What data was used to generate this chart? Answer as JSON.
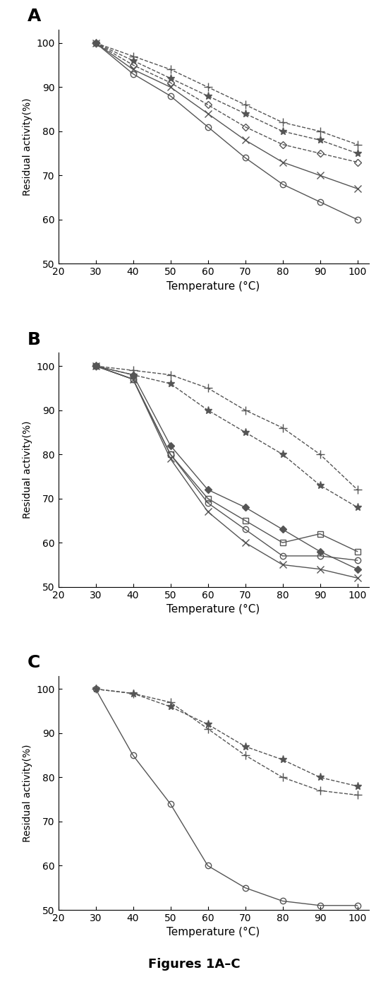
{
  "panel_A": {
    "label": "A",
    "xlabel": "Temperature (°C)",
    "ylabel": "Residual activity(%)",
    "xlim": [
      20,
      103
    ],
    "ylim": [
      50,
      103
    ],
    "xticks": [
      20,
      30,
      40,
      50,
      60,
      70,
      80,
      90,
      100
    ],
    "yticks": [
      50,
      60,
      70,
      80,
      90,
      100
    ],
    "series": [
      {
        "x": [
          30,
          40,
          50,
          60,
          70,
          80,
          90,
          100
        ],
        "y": [
          100,
          97,
          94,
          90,
          86,
          82,
          80,
          77
        ],
        "marker": "+",
        "linestyle": "--",
        "color": "#555555",
        "markersize": 9,
        "linewidth": 1.0,
        "markerfacecolor": "none"
      },
      {
        "x": [
          30,
          40,
          50,
          60,
          70,
          80,
          90,
          100
        ],
        "y": [
          100,
          96,
          92,
          88,
          84,
          80,
          78,
          75
        ],
        "marker": "*",
        "linestyle": "--",
        "color": "#555555",
        "markersize": 8,
        "linewidth": 1.0,
        "markerfacecolor": "#555555"
      },
      {
        "x": [
          30,
          40,
          50,
          60,
          70,
          80,
          90,
          100
        ],
        "y": [
          100,
          95,
          91,
          86,
          81,
          77,
          75,
          73
        ],
        "marker": "D",
        "linestyle": "--",
        "color": "#555555",
        "markersize": 5,
        "linewidth": 1.0,
        "markerfacecolor": "none"
      },
      {
        "x": [
          30,
          40,
          50,
          60,
          70,
          80,
          90,
          100
        ],
        "y": [
          100,
          94,
          90,
          84,
          78,
          73,
          70,
          67
        ],
        "marker": "x",
        "linestyle": "-",
        "color": "#555555",
        "markersize": 7,
        "linewidth": 1.0,
        "markerfacecolor": "none"
      },
      {
        "x": [
          30,
          40,
          50,
          60,
          70,
          80,
          90,
          100
        ],
        "y": [
          100,
          93,
          88,
          81,
          74,
          68,
          64,
          60
        ],
        "marker": "o",
        "linestyle": "-",
        "color": "#555555",
        "markersize": 6,
        "linewidth": 1.0,
        "markerfacecolor": "none"
      }
    ]
  },
  "panel_B": {
    "label": "B",
    "xlabel": "Temperature (°C)",
    "ylabel": "Residual activity(%)",
    "xlim": [
      20,
      103
    ],
    "ylim": [
      50,
      103
    ],
    "xticks": [
      20,
      30,
      40,
      50,
      60,
      70,
      80,
      90,
      100
    ],
    "yticks": [
      50,
      60,
      70,
      80,
      90,
      100
    ],
    "series": [
      {
        "x": [
          30,
          40,
          50,
          60,
          70,
          80,
          90,
          100
        ],
        "y": [
          100,
          99,
          98,
          95,
          90,
          86,
          80,
          72
        ],
        "marker": "+",
        "linestyle": "--",
        "color": "#555555",
        "markersize": 9,
        "linewidth": 1.0,
        "markerfacecolor": "none"
      },
      {
        "x": [
          30,
          40,
          50,
          60,
          70,
          80,
          90,
          100
        ],
        "y": [
          100,
          98,
          96,
          90,
          85,
          80,
          73,
          68
        ],
        "marker": "*",
        "linestyle": "--",
        "color": "#555555",
        "markersize": 8,
        "linewidth": 1.0,
        "markerfacecolor": "#555555"
      },
      {
        "x": [
          30,
          40,
          50,
          60,
          70,
          80,
          90,
          100
        ],
        "y": [
          100,
          98,
          82,
          72,
          68,
          63,
          58,
          54
        ],
        "marker": "D",
        "linestyle": "-",
        "color": "#555555",
        "markersize": 5,
        "linewidth": 1.0,
        "markerfacecolor": "#555555"
      },
      {
        "x": [
          30,
          40,
          50,
          60,
          70,
          80,
          90,
          100
        ],
        "y": [
          100,
          97,
          80,
          70,
          65,
          60,
          62,
          58
        ],
        "marker": "s",
        "linestyle": "-",
        "color": "#555555",
        "markersize": 6,
        "linewidth": 1.0,
        "markerfacecolor": "none"
      },
      {
        "x": [
          30,
          40,
          50,
          60,
          70,
          80,
          90,
          100
        ],
        "y": [
          100,
          97,
          80,
          69,
          63,
          57,
          57,
          56
        ],
        "marker": "o",
        "linestyle": "-",
        "color": "#555555",
        "markersize": 6,
        "linewidth": 1.0,
        "markerfacecolor": "none"
      },
      {
        "x": [
          30,
          40,
          50,
          60,
          70,
          80,
          90,
          100
        ],
        "y": [
          100,
          97,
          79,
          67,
          60,
          55,
          54,
          52
        ],
        "marker": "x",
        "linestyle": "-",
        "color": "#555555",
        "markersize": 7,
        "linewidth": 1.0,
        "markerfacecolor": "none"
      }
    ]
  },
  "panel_C": {
    "label": "C",
    "xlabel": "Temperature (°C)",
    "ylabel": "Residual activity(%)",
    "xlim": [
      20,
      103
    ],
    "ylim": [
      50,
      103
    ],
    "xticks": [
      20,
      30,
      40,
      50,
      60,
      70,
      80,
      90,
      100
    ],
    "yticks": [
      50,
      60,
      70,
      80,
      90,
      100
    ],
    "series": [
      {
        "x": [
          30,
          40,
          50,
          60,
          70,
          80,
          90,
          100
        ],
        "y": [
          100,
          99,
          97,
          91,
          85,
          80,
          77,
          76
        ],
        "marker": "+",
        "linestyle": "--",
        "color": "#555555",
        "markersize": 9,
        "linewidth": 1.0,
        "markerfacecolor": "none"
      },
      {
        "x": [
          30,
          40,
          50,
          60,
          70,
          80,
          90,
          100
        ],
        "y": [
          100,
          99,
          96,
          92,
          87,
          84,
          80,
          78
        ],
        "marker": "*",
        "linestyle": "--",
        "color": "#555555",
        "markersize": 8,
        "linewidth": 1.0,
        "markerfacecolor": "#555555"
      },
      {
        "x": [
          30,
          40,
          50,
          60,
          70,
          80,
          90,
          100
        ],
        "y": [
          100,
          85,
          74,
          60,
          55,
          52,
          51,
          51
        ],
        "marker": "o",
        "linestyle": "-",
        "color": "#555555",
        "markersize": 6,
        "linewidth": 1.0,
        "markerfacecolor": "none"
      }
    ]
  },
  "figure_caption": "Figures 1A–C",
  "background_color": "#ffffff",
  "fig_width": 5.5,
  "fig_height": 14.0
}
